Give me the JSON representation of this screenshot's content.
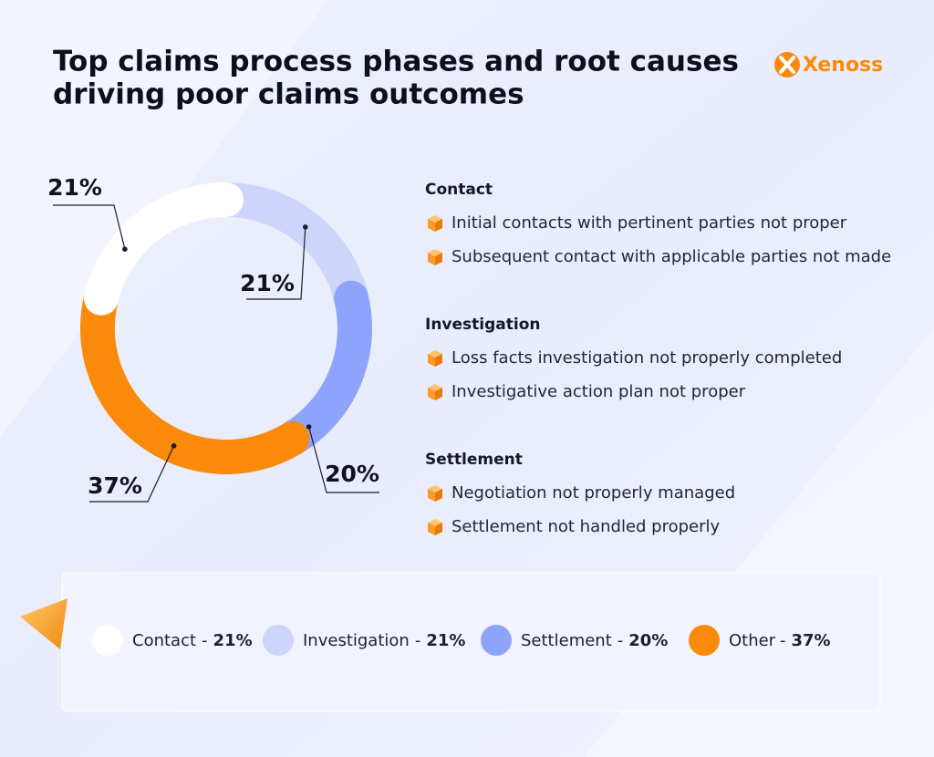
{
  "title": [
    "Top claims process phases and root causes",
    "driving poor claims outcomes"
  ],
  "logo": "Xenoss",
  "causes": [
    {
      "heading": "Contact",
      "items": [
        "Initial contacts with pertinent parties not proper",
        "Subsequent contact with applicable parties not made"
      ]
    },
    {
      "heading": "Investigation",
      "items": [
        "Loss facts investigation not properly completed",
        "Investigative action plan not proper"
      ]
    },
    {
      "heading": "Settlement",
      "items": [
        "Negotiation not properly managed",
        "Settlement not handled properly"
      ]
    }
  ],
  "chart_data": {
    "type": "donut",
    "categories": [
      "Contact",
      "Investigation",
      "Settlement",
      "Other"
    ],
    "values": [
      21,
      21,
      20,
      37
    ],
    "value_labels": [
      "21%",
      "21%",
      "20%",
      "37%"
    ],
    "colors": [
      "#ffffff",
      "#cdd5fb",
      "#8ea3fb",
      "#fb8a0a"
    ],
    "legend_separator": "-"
  }
}
